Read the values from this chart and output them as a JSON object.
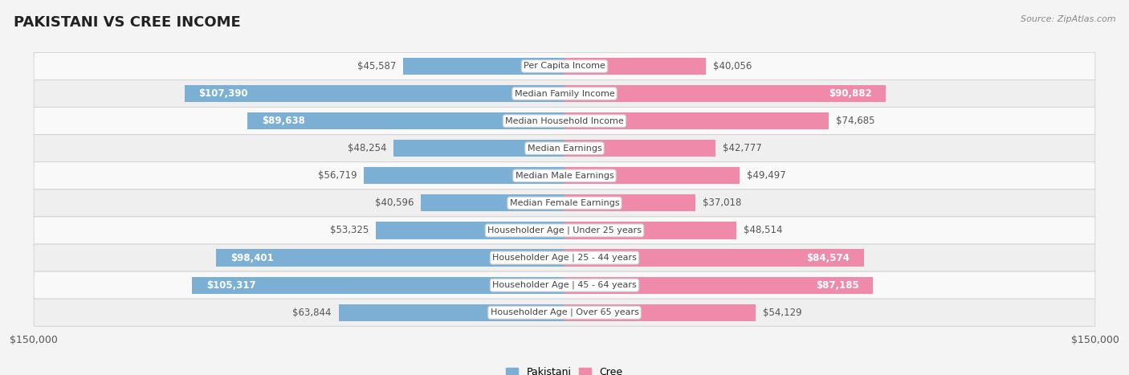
{
  "title": "PAKISTANI VS CREE INCOME",
  "source": "Source: ZipAtlas.com",
  "categories": [
    "Per Capita Income",
    "Median Family Income",
    "Median Household Income",
    "Median Earnings",
    "Median Male Earnings",
    "Median Female Earnings",
    "Householder Age | Under 25 years",
    "Householder Age | 25 - 44 years",
    "Householder Age | 45 - 64 years",
    "Householder Age | Over 65 years"
  ],
  "pakistani_values": [
    45587,
    107390,
    89638,
    48254,
    56719,
    40596,
    53325,
    98401,
    105317,
    63844
  ],
  "cree_values": [
    40056,
    90882,
    74685,
    42777,
    49497,
    37018,
    48514,
    84574,
    87185,
    54129
  ],
  "pakistani_labels": [
    "$45,587",
    "$107,390",
    "$89,638",
    "$48,254",
    "$56,719",
    "$40,596",
    "$53,325",
    "$98,401",
    "$105,317",
    "$63,844"
  ],
  "cree_labels": [
    "$40,056",
    "$90,882",
    "$74,685",
    "$42,777",
    "$49,497",
    "$37,018",
    "$48,514",
    "$84,574",
    "$87,185",
    "$54,129"
  ],
  "pakistani_color": "#7bafd4",
  "cree_color": "#f08aab",
  "pakistani_color_dark": "#5b9dc8",
  "cree_color_dark": "#e8608a",
  "max_value": 150000,
  "bar_height": 0.62,
  "background_color": "#f4f4f4",
  "title_fontsize": 13,
  "label_fontsize": 8.5,
  "category_fontsize": 8.0,
  "axis_label_fontsize": 9,
  "pk_inside_threshold": 75000,
  "cr_inside_threshold": 75000
}
